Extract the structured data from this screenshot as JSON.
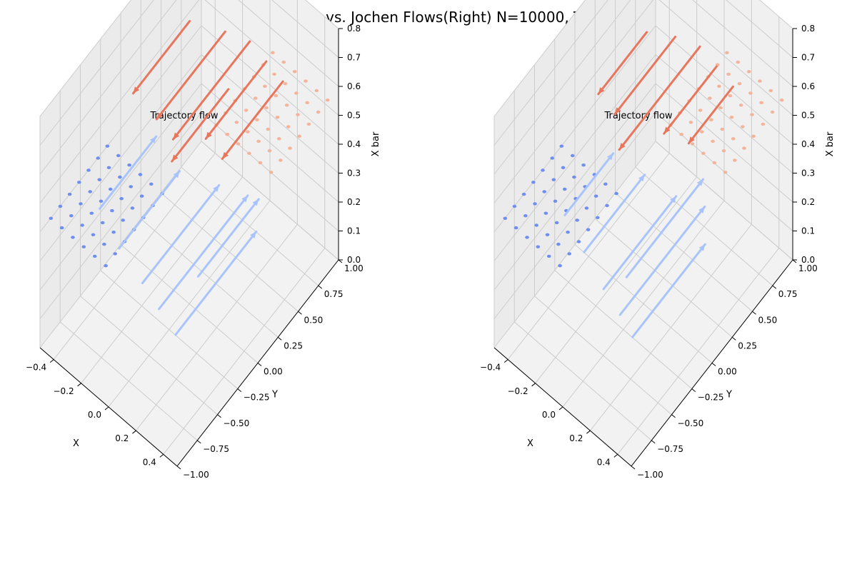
{
  "figure": {
    "title": "MaxCal(Left) vs. Jochen Flows(Right)  N=10000, T=0.03"
  },
  "colors": {
    "pane_face": "#f2f2f2",
    "grid": "#cccccc",
    "axis_line": "#000000",
    "deep_blue": "#6f8ff0",
    "light_blue": "#a9c4fc",
    "deep_red": "#e8765c",
    "light_red": "#f4b49a"
  },
  "chart_data": [
    {
      "type": "3d-quiver",
      "title": "Trajectory flow",
      "panel": "left",
      "xlabel": "X",
      "ylabel": "Y",
      "zlabel": "X bar",
      "xlim": [
        -0.5,
        0.5
      ],
      "ylim": [
        -1.0,
        1.0
      ],
      "zlim": [
        0.0,
        0.8
      ],
      "x_ticks": [
        "-0.4",
        "-0.2",
        "0.0",
        "0.2",
        "0.4"
      ],
      "y_ticks": [
        "-1.00",
        "-0.75",
        "-0.50",
        "-0.25",
        "0.00",
        "0.25",
        "0.50",
        "0.75",
        "1.00"
      ],
      "z_ticks": [
        "0.0",
        "0.1",
        "0.2",
        "0.3",
        "0.4",
        "0.5",
        "0.6",
        "0.7",
        "0.8"
      ],
      "grid": true,
      "point_grids": [
        {
          "name": "blue",
          "x_range": [
            -0.45,
            -0.05
          ],
          "y_range": [
            -0.95,
            -0.25
          ],
          "z": 0.45,
          "nx": 6,
          "ny": 7,
          "color_key": "deep_blue"
        },
        {
          "name": "red",
          "x_range": [
            0.05,
            0.45
          ],
          "y_range": [
            0.25,
            0.95
          ],
          "z": 0.55,
          "nx": 6,
          "ny": 7,
          "color_key": "light_red"
        }
      ],
      "arrows": [
        {
          "start": [
            -0.3,
            -0.6,
            0.42
          ],
          "end": [
            -0.3,
            0.1,
            0.42
          ],
          "color_key": "light_blue"
        },
        {
          "start": [
            -0.1,
            -0.7,
            0.4
          ],
          "end": [
            -0.1,
            0.05,
            0.4
          ],
          "color_key": "light_blue"
        },
        {
          "start": [
            0.1,
            -0.75,
            0.38
          ],
          "end": [
            0.1,
            0.2,
            0.38
          ],
          "color_key": "light_blue"
        },
        {
          "start": [
            0.25,
            -0.8,
            0.37
          ],
          "end": [
            0.25,
            0.3,
            0.37
          ],
          "color_key": "light_blue"
        },
        {
          "start": [
            0.4,
            -0.85,
            0.36
          ],
          "end": [
            0.4,
            0.15,
            0.36
          ],
          "color_key": "light_blue"
        },
        {
          "start": [
            0.3,
            -0.4,
            0.36
          ],
          "end": [
            0.3,
            0.35,
            0.36
          ],
          "color_key": "light_blue"
        },
        {
          "start": [
            -0.35,
            0.6,
            0.62
          ],
          "end": [
            -0.35,
            -0.1,
            0.62
          ],
          "color_key": "deep_red"
        },
        {
          "start": [
            -0.15,
            0.7,
            0.63
          ],
          "end": [
            -0.15,
            -0.15,
            0.63
          ],
          "color_key": "deep_red"
        },
        {
          "start": [
            0.0,
            0.75,
            0.64
          ],
          "end": [
            0.0,
            -0.2,
            0.64
          ],
          "color_key": "deep_red"
        },
        {
          "start": [
            0.15,
            0.7,
            0.65
          ],
          "end": [
            0.15,
            -0.05,
            0.65
          ],
          "color_key": "deep_red"
        },
        {
          "start": [
            0.3,
            0.65,
            0.66
          ],
          "end": [
            0.3,
            -0.1,
            0.66
          ],
          "color_key": "deep_red"
        },
        {
          "start": [
            0.05,
            0.4,
            0.62
          ],
          "end": [
            0.05,
            -0.3,
            0.62
          ],
          "color_key": "deep_red"
        }
      ]
    },
    {
      "type": "3d-quiver",
      "title": "Trajectory flow",
      "panel": "right",
      "xlabel": "X",
      "ylabel": "Y",
      "zlabel": "X bar",
      "xlim": [
        -0.5,
        0.5
      ],
      "ylim": [
        -1.0,
        1.0
      ],
      "zlim": [
        0.0,
        0.8
      ],
      "x_ticks": [
        "-0.4",
        "-0.2",
        "0.0",
        "0.2",
        "0.4"
      ],
      "y_ticks": [
        "-1.00",
        "-0.75",
        "-0.50",
        "-0.25",
        "0.00",
        "0.25",
        "0.50",
        "0.75",
        "1.00"
      ],
      "z_ticks": [
        "0.0",
        "0.1",
        "0.2",
        "0.3",
        "0.4",
        "0.5",
        "0.6",
        "0.7",
        "0.8"
      ],
      "grid": true,
      "point_grids": [
        {
          "name": "blue",
          "x_range": [
            -0.45,
            -0.05
          ],
          "y_range": [
            -0.95,
            -0.25
          ],
          "z": 0.45,
          "nx": 6,
          "ny": 7,
          "color_key": "deep_blue"
        },
        {
          "name": "red",
          "x_range": [
            0.05,
            0.45
          ],
          "y_range": [
            0.25,
            0.95
          ],
          "z": 0.55,
          "nx": 6,
          "ny": 7,
          "color_key": "light_red"
        }
      ],
      "arrows": [
        {
          "start": [
            -0.25,
            -0.55,
            0.4
          ],
          "end": [
            -0.25,
            0.05,
            0.4
          ],
          "color_key": "light_blue"
        },
        {
          "start": [
            -0.05,
            -0.65,
            0.39
          ],
          "end": [
            -0.05,
            0.1,
            0.39
          ],
          "color_key": "light_blue"
        },
        {
          "start": [
            0.15,
            -0.75,
            0.38
          ],
          "end": [
            0.15,
            0.15,
            0.38
          ],
          "color_key": "light_blue"
        },
        {
          "start": [
            0.3,
            -0.8,
            0.37
          ],
          "end": [
            0.3,
            0.25,
            0.37
          ],
          "color_key": "light_blue"
        },
        {
          "start": [
            0.42,
            -0.85,
            0.36
          ],
          "end": [
            0.42,
            0.05,
            0.36
          ],
          "color_key": "light_blue"
        },
        {
          "start": [
            0.2,
            -0.55,
            0.37
          ],
          "end": [
            0.2,
            0.4,
            0.37
          ],
          "color_key": "light_blue"
        },
        {
          "start": [
            -0.3,
            0.55,
            0.62
          ],
          "end": [
            -0.3,
            -0.05,
            0.62
          ],
          "color_key": "deep_red"
        },
        {
          "start": [
            -0.15,
            0.65,
            0.63
          ],
          "end": [
            -0.15,
            -0.1,
            0.63
          ],
          "color_key": "deep_red"
        },
        {
          "start": [
            0.0,
            0.7,
            0.64
          ],
          "end": [
            0.0,
            -0.3,
            0.64
          ],
          "color_key": "deep_red"
        },
        {
          "start": [
            0.15,
            0.65,
            0.65
          ],
          "end": [
            0.15,
            0.0,
            0.65
          ],
          "color_key": "deep_red"
        },
        {
          "start": [
            0.3,
            0.6,
            0.66
          ],
          "end": [
            0.3,
            0.05,
            0.66
          ],
          "color_key": "deep_red"
        }
      ]
    }
  ]
}
